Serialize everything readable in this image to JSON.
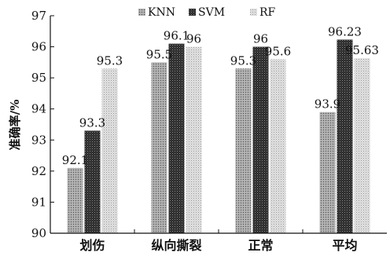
{
  "chart_data": {
    "type": "bar",
    "categories": [
      "划伤",
      "纵向撕裂",
      "正常",
      "平均"
    ],
    "series": [
      {
        "name": "KNN",
        "values": [
          92.1,
          95.5,
          95.3,
          93.9
        ],
        "labels": [
          "92.1",
          "95.5",
          "95.3",
          "93.9"
        ],
        "pattern": "light-dotted",
        "color": "#8c8c8c"
      },
      {
        "name": "SVM",
        "values": [
          93.3,
          96.1,
          96,
          96.23
        ],
        "labels": [
          "93.3",
          "96.1",
          "96",
          "96.23"
        ],
        "pattern": "dark-dotted",
        "color": "#2e2e2e"
      },
      {
        "name": "RF",
        "values": [
          95.3,
          96,
          95.6,
          95.63
        ],
        "labels": [
          "95.3",
          "96",
          "95.6",
          "95.63"
        ],
        "pattern": "pale-dotted",
        "color": "#cfcfcf"
      }
    ],
    "title": "",
    "xlabel": "",
    "ylabel": "准确率/%",
    "ylim": [
      90,
      97
    ],
    "yticks": [
      "90",
      "91",
      "92",
      "93",
      "94",
      "95",
      "96",
      "97"
    ],
    "grid": false,
    "legend": "top-center"
  }
}
